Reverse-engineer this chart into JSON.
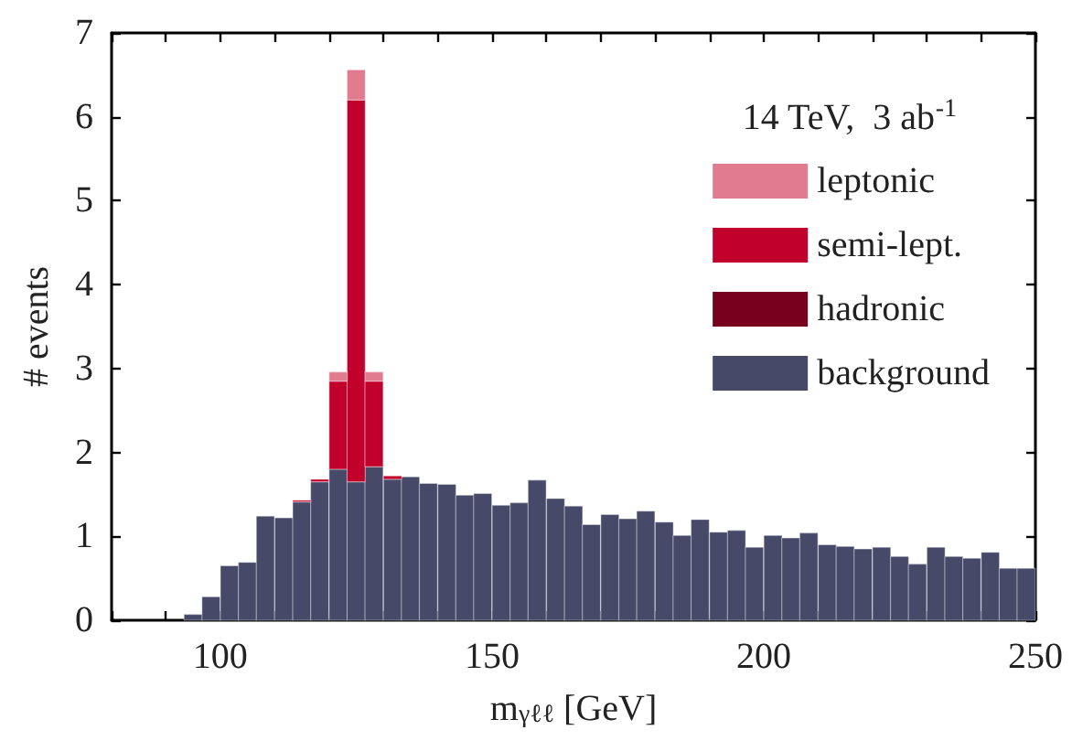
{
  "chart_data": {
    "type": "bar",
    "stacked": true,
    "xlabel": "m$_{γℓℓ}$ [GeV]",
    "ylabel": "# events",
    "legend_title": "14 TeV,  3 ab$^{-1}$",
    "legend": "top right",
    "grid": false,
    "x": [
      95,
      98.3,
      101.7,
      105,
      108.3,
      111.7,
      115,
      118.3,
      121.7,
      125,
      128.3,
      131.7,
      135,
      138.3,
      141.7,
      145,
      148.3,
      151.7,
      155,
      158.3,
      161.7,
      165,
      168.3,
      171.7,
      175,
      178.3,
      181.7,
      185,
      188.3,
      191.7,
      195,
      198.3,
      201.7,
      205,
      208.3,
      211.7,
      215,
      218.3,
      221.7,
      225,
      228.3,
      231.7,
      235,
      238.3,
      241.7,
      245,
      248.3
    ],
    "xlim": [
      80,
      250
    ],
    "ylim": [
      0,
      7
    ],
    "xticks": [
      {
        "value": 80,
        "label": null
      },
      {
        "value": 90,
        "label": null
      },
      100,
      {
        "value": 110,
        "label": null
      },
      {
        "value": 120,
        "label": null
      },
      {
        "value": 130,
        "label": null
      },
      {
        "value": 140,
        "label": null
      },
      150,
      {
        "value": 160,
        "label": null
      },
      {
        "value": 170,
        "label": null
      },
      {
        "value": 180,
        "label": null
      },
      {
        "value": 190,
        "label": null
      },
      200,
      {
        "value": 210,
        "label": null
      },
      {
        "value": 220,
        "label": null
      },
      {
        "value": 230,
        "label": null
      },
      {
        "value": 240,
        "label": null
      },
      250
    ],
    "yticks": [
      0,
      1,
      2,
      3,
      4,
      5,
      6,
      7
    ],
    "series": [
      {
        "name": "background",
        "color": "#464a68",
        "values": [
          0.07,
          0.28,
          0.65,
          0.69,
          1.24,
          1.22,
          1.41,
          1.65,
          1.8,
          1.65,
          1.83,
          1.68,
          1.71,
          1.63,
          1.62,
          1.49,
          1.51,
          1.37,
          1.4,
          1.67,
          1.45,
          1.36,
          1.14,
          1.26,
          1.21,
          1.3,
          1.17,
          1.01,
          1.2,
          1.05,
          1.07,
          0.87,
          1.01,
          0.98,
          1.04,
          0.9,
          0.88,
          0.85,
          0.87,
          0.76,
          0.67,
          0.87,
          0.76,
          0.74,
          0.81,
          0.62,
          0.62
        ]
      },
      {
        "name": "hadronic",
        "color": "#78001e",
        "values": [
          0,
          0,
          0,
          0,
          0,
          0,
          0,
          0,
          0,
          0,
          0,
          0,
          0,
          0,
          0,
          0,
          0,
          0,
          0,
          0,
          0,
          0,
          0,
          0,
          0,
          0,
          0,
          0,
          0,
          0,
          0,
          0,
          0,
          0,
          0,
          0,
          0,
          0,
          0,
          0,
          0,
          0,
          0,
          0,
          0,
          0,
          0
        ]
      },
      {
        "name": "semi-lept.",
        "color": "#c2002c",
        "values": [
          0,
          0,
          0,
          0,
          0,
          0,
          0.02,
          0.03,
          1.05,
          4.55,
          1.02,
          0.04,
          0,
          0,
          0,
          0,
          0,
          0,
          0,
          0,
          0,
          0,
          0,
          0,
          0,
          0,
          0,
          0,
          0,
          0,
          0,
          0,
          0,
          0,
          0,
          0,
          0,
          0,
          0,
          0,
          0,
          0,
          0,
          0,
          0,
          0,
          0
        ]
      },
      {
        "name": "leptonic",
        "color": "#e07c8e",
        "values": [
          0,
          0,
          0,
          0,
          0,
          0,
          0,
          0,
          0.11,
          0.36,
          0.11,
          0,
          0,
          0,
          0,
          0,
          0,
          0,
          0,
          0,
          0,
          0,
          0,
          0,
          0,
          0,
          0,
          0,
          0,
          0,
          0,
          0,
          0,
          0,
          0,
          0,
          0,
          0,
          0,
          0,
          0,
          0,
          0,
          0,
          0,
          0,
          0
        ]
      }
    ]
  }
}
